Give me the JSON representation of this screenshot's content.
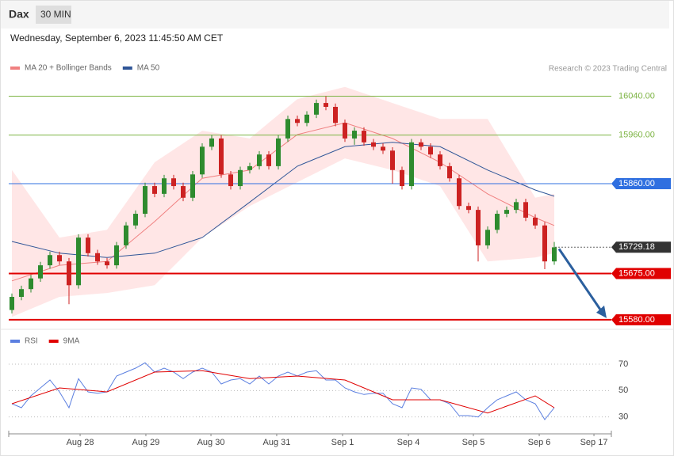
{
  "header": {
    "symbol": "Dax",
    "interval": "30 MIN",
    "timestamp": "Wednesday, September 6, 2023 11:45:50 AM CET",
    "credit": "Research © 2023 Trading Central"
  },
  "chart_data": [
    {
      "type": "candlestick",
      "up_color": "#2e8b2e",
      "down_color": "#cc2222",
      "open": [
        15600,
        15627,
        15643,
        15665,
        15692,
        15713,
        15700,
        15651,
        15749,
        15717,
        15700,
        15692,
        15733,
        15774,
        15798,
        15855,
        15839,
        15871,
        15855,
        15831,
        15879,
        15936,
        15953,
        15879,
        15855,
        15888,
        15896,
        15920,
        15896,
        15953,
        15993,
        15985,
        16002,
        16026,
        16018,
        15985,
        15953,
        15969,
        15945,
        15936,
        15928,
        15888,
        15855,
        15945,
        15936,
        15920,
        15896,
        15871,
        15814,
        15806,
        15733,
        15765,
        15798,
        15806,
        15822,
        15790,
        15774,
        15700
      ],
      "high": [
        15634,
        15650,
        15672,
        15699,
        15720,
        15720,
        15707,
        15756,
        15756,
        15724,
        15707,
        15740,
        15781,
        15805,
        15862,
        15862,
        15878,
        15878,
        15862,
        15886,
        15943,
        15960,
        15960,
        15886,
        15895,
        15903,
        15927,
        15927,
        15960,
        16000,
        16000,
        16009,
        16033,
        16040,
        16025,
        15992,
        15976,
        15976,
        15952,
        15943,
        15935,
        15895,
        15952,
        15952,
        15943,
        15927,
        15903,
        15878,
        15821,
        15813,
        15772,
        15805,
        15813,
        15829,
        15829,
        15797,
        15781,
        15740
      ],
      "low": [
        15593,
        15620,
        15636,
        15658,
        15685,
        15693,
        15612,
        15644,
        15710,
        15693,
        15685,
        15685,
        15726,
        15767,
        15791,
        15832,
        15832,
        15848,
        15824,
        15824,
        15872,
        15929,
        15872,
        15848,
        15848,
        15881,
        15889,
        15889,
        15889,
        15946,
        15978,
        15978,
        15995,
        16011,
        15978,
        15946,
        15940,
        15938,
        15929,
        15921,
        15860,
        15848,
        15848,
        15929,
        15913,
        15889,
        15864,
        15807,
        15799,
        15700,
        15726,
        15758,
        15791,
        15799,
        15783,
        15767,
        15684,
        15693
      ],
      "close": [
        15627,
        15643,
        15665,
        15692,
        15713,
        15700,
        15651,
        15749,
        15717,
        15700,
        15692,
        15733,
        15774,
        15798,
        15855,
        15839,
        15871,
        15855,
        15831,
        15879,
        15936,
        15953,
        15879,
        15855,
        15888,
        15896,
        15920,
        15896,
        15953,
        15993,
        15985,
        16002,
        16026,
        16018,
        15985,
        15953,
        15969,
        15945,
        15936,
        15928,
        15888,
        15855,
        15945,
        15936,
        15920,
        15896,
        15871,
        15814,
        15806,
        15733,
        15765,
        15798,
        15806,
        15822,
        15790,
        15774,
        15700,
        15729
      ],
      "series": [
        {
          "name": "MA 20 + Bollinger Bands",
          "color": "#f08080",
          "x": [
            0,
            5,
            10,
            15,
            20,
            25,
            30,
            35,
            40,
            45,
            50,
            55,
            57
          ],
          "values": [
            15660,
            15692,
            15700,
            15782,
            15871,
            15888,
            15961,
            15985,
            15953,
            15904,
            15839,
            15790,
            15774
          ],
          "upper": [
            15888,
            15749,
            15765,
            15904,
            15969,
            15953,
            16034,
            16059,
            16026,
            15993,
            15993,
            15831,
            15839
          ],
          "lower": [
            15586,
            15627,
            15635,
            15651,
            15749,
            15814,
            15863,
            15912,
            15888,
            15855,
            15700,
            15708,
            15717
          ]
        },
        {
          "name": "MA 50",
          "color": "#2f5597",
          "x": [
            0,
            5,
            10,
            15,
            20,
            25,
            30,
            35,
            40,
            45,
            50,
            55,
            57
          ],
          "values": [
            15741,
            15717,
            15708,
            15717,
            15749,
            15822,
            15896,
            15936,
            15945,
            15936,
            15888,
            15847,
            15834
          ]
        }
      ],
      "levels": [
        {
          "value": 16040,
          "label": "16040.00",
          "color": "#7cb342",
          "label_box": false
        },
        {
          "value": 15960,
          "label": "15960.00",
          "color": "#7cb342",
          "label_box": false
        },
        {
          "value": 15860,
          "label": "15860.00",
          "color": "#2f6fe0",
          "label_box": true
        },
        {
          "value": 15729.18,
          "label": "15729.18",
          "color": "#333333",
          "label_box": true
        },
        {
          "value": 15675,
          "label": "15675.00",
          "color": "#e00000",
          "label_box": true
        },
        {
          "value": 15580,
          "label": "15580.00",
          "color": "#e00000",
          "label_box": true
        }
      ],
      "xlim": [
        0,
        63
      ],
      "ylim": [
        15570,
        16075
      ]
    },
    {
      "type": "line",
      "series": [
        {
          "name": "RSI",
          "color": "#5b7fe0",
          "values": [
            40,
            37,
            46,
            52,
            58,
            49,
            37,
            59,
            49,
            48,
            49,
            61,
            64,
            67,
            71,
            64,
            67,
            64,
            59,
            64,
            67,
            64,
            55,
            58,
            59,
            55,
            61,
            55,
            61,
            64,
            61,
            64,
            65,
            58,
            58,
            52,
            49,
            47,
            48,
            48,
            40,
            37,
            52,
            51,
            43,
            43,
            40,
            31,
            31,
            30,
            37,
            43,
            46,
            49,
            43,
            40,
            28,
            37
          ]
        },
        {
          "name": "9MA",
          "color": "#e00000",
          "x": [
            0,
            5,
            10,
            15,
            20,
            25,
            30,
            35,
            40,
            45,
            50,
            55,
            57
          ],
          "values": [
            40,
            52,
            49,
            64,
            65,
            59,
            61,
            58,
            43,
            43,
            33,
            46,
            37
          ]
        }
      ],
      "xlim": [
        0,
        63
      ],
      "ylim": [
        22,
        79
      ],
      "yticks": [
        70,
        50,
        30
      ],
      "xticks": [
        {
          "value": 7.17,
          "label": "Aug 28"
        },
        {
          "value": 14.08,
          "label": "Aug 29"
        },
        {
          "value": 20.92,
          "label": "Aug 30"
        },
        {
          "value": 27.83,
          "label": "Aug 31"
        },
        {
          "value": 34.75,
          "label": "Sep 1"
        },
        {
          "value": 41.67,
          "label": "Sep 4"
        },
        {
          "value": 48.5,
          "label": "Sep 5"
        },
        {
          "value": 55.42,
          "label": "Sep 6"
        },
        {
          "value": 61.17,
          "label": "Sep 17"
        }
      ]
    }
  ]
}
